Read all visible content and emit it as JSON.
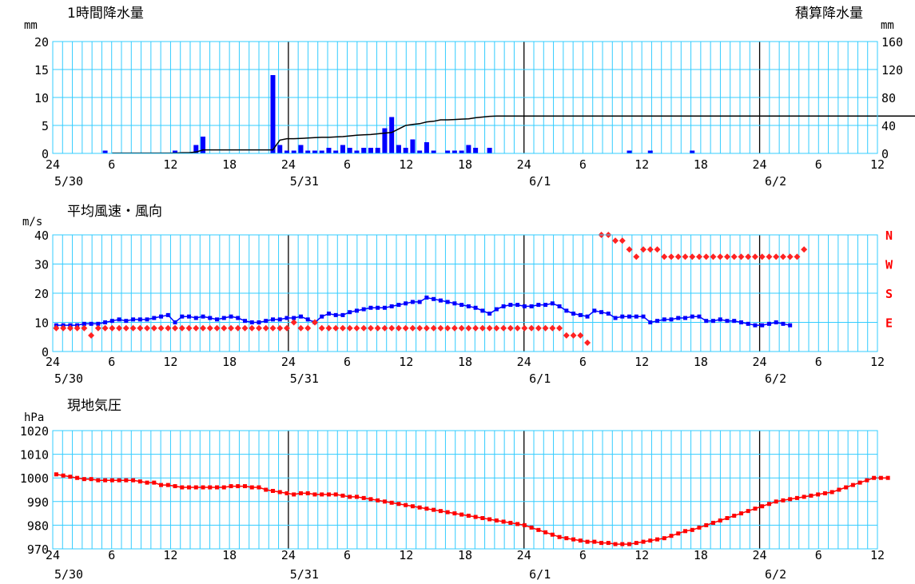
{
  "colors": {
    "grid": "#33ccff",
    "major": "#000000",
    "bar": "#0000ff",
    "line": "#000000",
    "wind": "#0000ff",
    "dir": "#ff2222",
    "pressure": "#ff0000"
  },
  "x_axis": {
    "ticks": [
      "24",
      "6",
      "12",
      "18",
      "24",
      "6",
      "12",
      "18",
      "24",
      "6",
      "12",
      "18",
      "24",
      "6",
      "12"
    ],
    "dates": [
      "5/30",
      "5/31",
      "6/1",
      "6/2"
    ]
  },
  "chart_data": [
    {
      "type": "bar",
      "title": "1時間降水量",
      "right_title": "積算降水量",
      "ylabel": "mm",
      "y2label": "mm",
      "ylim": [
        0,
        20
      ],
      "y2lim": [
        0,
        160
      ],
      "yticks": [
        "0",
        "5",
        "10",
        "15",
        "20"
      ],
      "y2ticks": [
        "0",
        "40",
        "80",
        "120",
        "160"
      ],
      "series": [
        {
          "values": [
            0,
            0,
            0,
            0,
            0,
            0,
            0,
            0.5,
            0,
            0,
            0,
            0,
            0,
            0,
            0,
            0,
            0,
            0.5,
            0,
            0,
            1.5,
            3,
            0,
            0,
            0,
            0,
            0,
            0,
            0,
            0,
            0,
            14,
            1.5,
            0.5,
            0.5,
            1.5,
            0.5,
            0.5,
            0.5,
            1,
            0.5,
            1.5,
            1,
            0.5,
            1,
            1,
            1,
            4.5,
            6.5,
            1.5,
            1,
            2.5,
            0.5,
            2,
            0.5,
            0,
            0.5,
            0.5,
            0.5,
            1.5,
            1,
            0,
            1,
            0,
            0,
            0,
            0,
            0,
            0,
            0,
            0,
            0,
            0,
            0,
            0,
            0,
            0,
            0,
            0,
            0,
            0,
            0,
            0.5,
            0,
            0,
            0.5,
            0,
            0,
            0,
            0,
            0,
            0.5,
            0,
            0,
            0,
            0,
            0,
            0,
            0,
            0,
            0,
            0,
            0,
            0,
            0,
            0,
            0,
            0,
            0,
            0,
            0,
            0,
            0,
            0,
            0,
            0,
            0,
            0,
            0,
            0,
            0,
            0,
            0,
            0,
            0,
            0,
            0,
            0
          ]
        },
        {
          "values": [
            null,
            null,
            null,
            null,
            null,
            null,
            null,
            null,
            0.5,
            0.5,
            0.5,
            0.5,
            0.5,
            0.5,
            0.5,
            0.5,
            0.5,
            0.5,
            1,
            1,
            2,
            5,
            5,
            5,
            5,
            5,
            5,
            5,
            5,
            5,
            5,
            5,
            19,
            21,
            21,
            21.5,
            22,
            22.5,
            23,
            23,
            23.5,
            24,
            25,
            26,
            26.5,
            27,
            28,
            29,
            30,
            35,
            40,
            41.5,
            42.5,
            45,
            46,
            48,
            48,
            48.5,
            49,
            49.5,
            51,
            52,
            53,
            53.5,
            53.5,
            53.5,
            53.5,
            53.5,
            53.5,
            53.5,
            53.5,
            53.5,
            53.5,
            53.5,
            53.5,
            53.5,
            53.5,
            53.5,
            53.5,
            53.5,
            53.5,
            53.5,
            53.5,
            53.5,
            53.5,
            53.5,
            53.5,
            53.5,
            53.5,
            53.5,
            53.5,
            53.5,
            53.5,
            53.5,
            53.5,
            53.5,
            53.5,
            53.5,
            53.5,
            53.5,
            53.5,
            53.5,
            53.5,
            53.5,
            53.5,
            53.5,
            53.5,
            53.5,
            53.5,
            53.5,
            53.5,
            53.5,
            53.5,
            53.5,
            53.5,
            53.5,
            53.5,
            53.5,
            53.5,
            53.5,
            53.5,
            53.5,
            53.5,
            53.5,
            53.5,
            53.5,
            53.5,
            53.5,
            53.5,
            53.5,
            53.5,
            53.5,
            53.5,
            53.5,
            53.5,
            53.5,
            53.5,
            53.5,
            53.5,
            53.5,
            53.5,
            53.5,
            53.5,
            53.5,
            53.5,
            53.5
          ]
        }
      ]
    },
    {
      "type": "line",
      "title": "平均風速・風向",
      "ylabel": "m/s",
      "ylim": [
        0,
        40
      ],
      "yticks": [
        "0",
        "10",
        "20",
        "30",
        "40"
      ],
      "direction_labels": [
        "E",
        "S",
        "W",
        "N"
      ],
      "series": [
        {
          "values": [
            9,
            9,
            9,
            9,
            9.5,
            9.5,
            9.5,
            10,
            10.5,
            11,
            10.5,
            11,
            11,
            11,
            11.5,
            12,
            12.5,
            10,
            12,
            12,
            11.5,
            12,
            11.5,
            11,
            11.5,
            12,
            11.5,
            10.5,
            10,
            10,
            10.5,
            11,
            11,
            11.5,
            11.5,
            12,
            11,
            10,
            12,
            13,
            12.5,
            12.5,
            13.5,
            14,
            14.5,
            15,
            15,
            15,
            15.5,
            16,
            16.5,
            17,
            17,
            18.5,
            18,
            17.5,
            17,
            16.5,
            16,
            15.5,
            15,
            14,
            13,
            14.5,
            15.5,
            16,
            16,
            15.5,
            15.5,
            16,
            16,
            16.5,
            15.5,
            14,
            13,
            12.5,
            12,
            14,
            13.5,
            13,
            11.5,
            12,
            12,
            12,
            12,
            10,
            10.5,
            11,
            11,
            11.5,
            11.5,
            12,
            12,
            10.5,
            10.5,
            11,
            10.5,
            10.5,
            10,
            9.5,
            9,
            9,
            9.5,
            10,
            9.5,
            9
          ]
        },
        {
          "values": [
            8,
            8,
            8,
            8,
            8,
            5.5,
            8,
            8,
            8,
            8,
            8,
            8,
            8,
            8,
            8,
            8,
            8,
            8,
            8,
            8,
            8,
            8,
            8,
            8,
            8,
            8,
            8,
            8,
            8,
            8,
            8,
            8,
            8,
            8,
            10,
            8,
            8,
            10,
            8,
            8,
            8,
            8,
            8,
            8,
            8,
            8,
            8,
            8,
            8,
            8,
            8,
            8,
            8,
            8,
            8,
            8,
            8,
            8,
            8,
            8,
            8,
            8,
            8,
            8,
            8,
            8,
            8,
            8,
            8,
            8,
            8,
            8,
            8,
            5.5,
            5.5,
            5.5,
            3,
            null,
            40,
            40,
            38,
            38,
            35,
            32.5,
            35,
            35,
            35,
            32.5,
            32.5,
            32.5,
            32.5,
            32.5,
            32.5,
            32.5,
            32.5,
            32.5,
            32.5,
            32.5,
            32.5,
            32.5,
            32.5,
            32.5,
            32.5,
            32.5,
            32.5,
            32.5,
            32.5,
            35
          ]
        }
      ]
    },
    {
      "type": "line",
      "title": "現地気圧",
      "ylabel": "hPa",
      "ylim": [
        970,
        1020
      ],
      "yticks": [
        "970",
        "980",
        "990",
        "1000",
        "1010",
        "1020"
      ],
      "series": [
        {
          "values": [
            1001.5,
            1001,
            1000.5,
            1000,
            999.5,
            999.5,
            999,
            999,
            999,
            999,
            999,
            999,
            998.5,
            998,
            998,
            997,
            997,
            996.5,
            996,
            996,
            996,
            996,
            996,
            996,
            996,
            996.5,
            996.5,
            996.5,
            996,
            996,
            995,
            994.5,
            994,
            993.5,
            993,
            993.5,
            993.5,
            993,
            993,
            993,
            993,
            992.5,
            992,
            992,
            991.5,
            991,
            990.5,
            990,
            989.5,
            989,
            988.5,
            988,
            987.5,
            987,
            986.5,
            986,
            985.5,
            985,
            984.5,
            984,
            983.5,
            983,
            982.5,
            982,
            981.5,
            981,
            980.5,
            980,
            979,
            978,
            977,
            976,
            975,
            974.5,
            974,
            973.5,
            973,
            973,
            972.5,
            972.5,
            972,
            972,
            972,
            972.5,
            973,
            973.5,
            974,
            974.5,
            975.5,
            976.5,
            977.5,
            978,
            979,
            980,
            981,
            982,
            983,
            984,
            985,
            986,
            987,
            988,
            989,
            990,
            990.5,
            991,
            991.5,
            992,
            992.5,
            993,
            993.5,
            994,
            995,
            996,
            997,
            998,
            999,
            1000,
            1000,
            1000
          ]
        }
      ]
    }
  ]
}
